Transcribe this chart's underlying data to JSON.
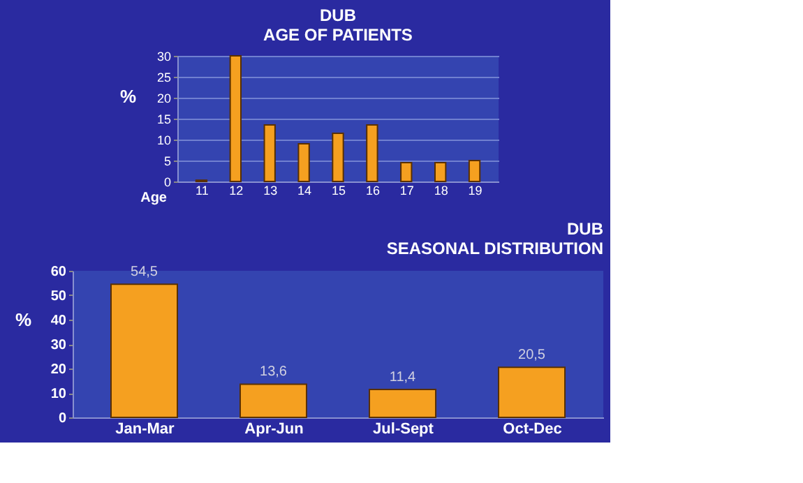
{
  "chart_data": [
    {
      "type": "bar",
      "title": "DUB\nAGE OF PATIENTS",
      "categories": [
        "11",
        "12",
        "13",
        "14",
        "15",
        "16",
        "17",
        "18",
        "19"
      ],
      "values": [
        0.3,
        30,
        13.5,
        9,
        11.5,
        13.5,
        4.5,
        4.5,
        5
      ],
      "color": "#f5a020",
      "xlabel": "Age",
      "ylabel": "%",
      "ylim": [
        0,
        30
      ],
      "yticks": [
        0,
        5,
        10,
        15,
        20,
        25,
        30
      ],
      "grid": "y"
    },
    {
      "type": "bar",
      "title": "DUB\nSEASONAL DISTRIBUTION",
      "categories": [
        "Jan-Mar",
        "Apr-Jun",
        "Jul-Sept",
        "Oct-Dec"
      ],
      "values": [
        54.5,
        13.6,
        11.4,
        20.5
      ],
      "value_labels": [
        "54,5",
        "13,6",
        "11,4",
        "20,5"
      ],
      "color": "#f5a020",
      "ylabel": "%",
      "ylim": [
        0,
        60
      ],
      "yticks": [
        0,
        10,
        20,
        30,
        40,
        50,
        60
      ],
      "grid": false
    }
  ]
}
